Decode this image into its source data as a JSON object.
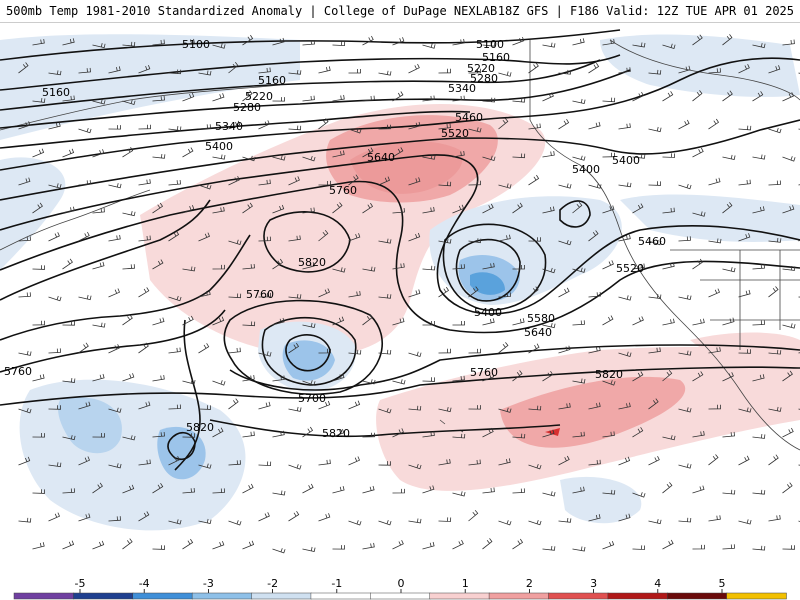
{
  "header": {
    "title": "500mb Temp 1981-2010 Standardized Anomaly | College of DuPage NEXLAB",
    "run_info": "18Z GFS | F186 Valid: 12Z TUE APR 01 2025"
  },
  "contour_labels": [
    "5100",
    "5160",
    "5220",
    "5280",
    "5340",
    "5400",
    "5460",
    "5520",
    "5580",
    "5640",
    "5700",
    "5760",
    "5820"
  ],
  "legend": {
    "ticks": [
      "-5",
      "-4",
      "-3",
      "-2",
      "-1",
      "0",
      "1",
      "2",
      "3",
      "4",
      "5"
    ],
    "colors": [
      "#6f3fa0",
      "#1f3f8f",
      "#3f8fd8",
      "#8ec0e8",
      "#cfe0f0",
      "#ffffff",
      "#ffffff",
      "#f8d0d0",
      "#f0a0a0",
      "#e05050",
      "#b01818",
      "#6a0a0a",
      "#f2c000"
    ]
  },
  "anomaly_colors": {
    "warm_light": "#f8d8d8",
    "warm_mid": "#f0a8a8",
    "warm_strong": "#e06060",
    "cool_light": "#d8e6f4",
    "cool_mid": "#9cc4ea",
    "cool_strong": "#3f8fd8"
  }
}
